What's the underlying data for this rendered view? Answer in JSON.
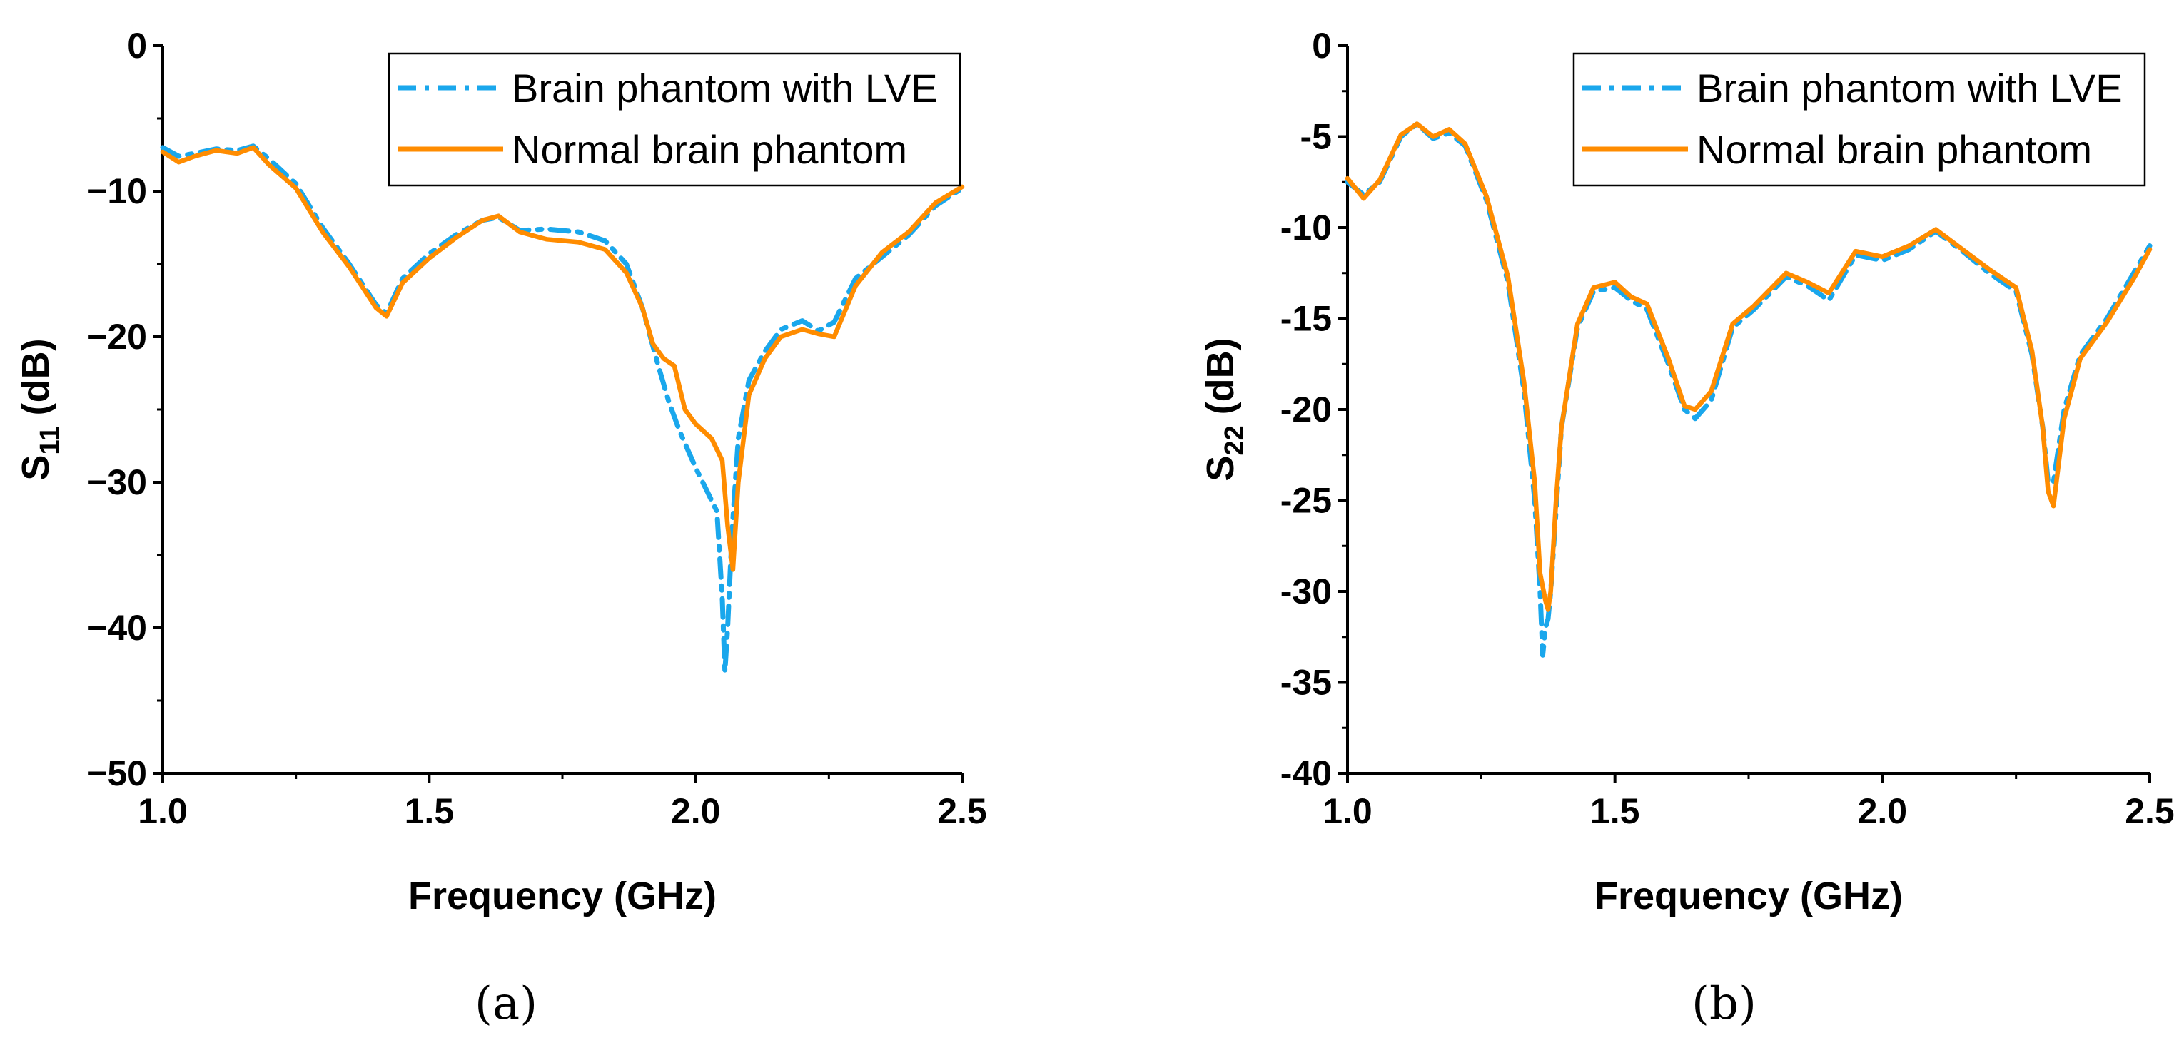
{
  "figure": {
    "panel_labels": [
      "(a)",
      "(b)"
    ]
  },
  "colors": {
    "series_lve": "#1aa7ec",
    "series_normal": "#ff8c00"
  },
  "chart_data": [
    {
      "type": "line",
      "id": "a",
      "title": "",
      "xlabel": "Frequency (GHz)",
      "ylabel_main": "S",
      "ylabel_sub": "11",
      "ylabel_unit": " (dB)",
      "xlim": [
        1.0,
        2.5
      ],
      "ylim": [
        -50,
        0
      ],
      "xticks": [
        1.0,
        1.5,
        2.0,
        2.5
      ],
      "xtick_labels": [
        "1.0",
        "1.5",
        "2.0",
        "2.5"
      ],
      "yticks": [
        0,
        -10,
        -20,
        -30,
        -40,
        -50
      ],
      "ytick_labels": [
        "0",
        "−10",
        "−20",
        "−30",
        "−40",
        "−50"
      ],
      "legend_position": "top-right",
      "series": [
        {
          "name": "Brain phantom with LVE",
          "style": "dashdot",
          "x": [
            1.0,
            1.03,
            1.06,
            1.1,
            1.14,
            1.17,
            1.2,
            1.25,
            1.3,
            1.35,
            1.4,
            1.42,
            1.45,
            1.5,
            1.55,
            1.6,
            1.63,
            1.67,
            1.72,
            1.78,
            1.83,
            1.87,
            1.9,
            1.93,
            1.95,
            1.97,
            2.0,
            2.02,
            2.04,
            2.05,
            2.055,
            2.06,
            2.065,
            2.07,
            2.08,
            2.1,
            2.13,
            2.16,
            2.2,
            2.23,
            2.26,
            2.3,
            2.35,
            2.4,
            2.45,
            2.5
          ],
          "y": [
            -7.0,
            -7.6,
            -7.4,
            -7.1,
            -7.2,
            -6.9,
            -7.8,
            -9.5,
            -12.5,
            -15.0,
            -17.8,
            -18.4,
            -16.0,
            -14.3,
            -13.0,
            -12.0,
            -11.8,
            -12.7,
            -12.6,
            -12.8,
            -13.4,
            -15.0,
            -18.0,
            -22.0,
            -24.5,
            -26.5,
            -29.0,
            -30.5,
            -32.0,
            -38.0,
            -43.0,
            -40.0,
            -36.0,
            -32.5,
            -27.0,
            -23.0,
            -21.0,
            -19.5,
            -18.9,
            -19.6,
            -19.0,
            -16.0,
            -14.5,
            -13.0,
            -11.0,
            -9.8
          ]
        },
        {
          "name": "Normal brain phantom",
          "style": "solid",
          "x": [
            1.0,
            1.03,
            1.06,
            1.1,
            1.14,
            1.17,
            1.2,
            1.25,
            1.3,
            1.35,
            1.4,
            1.42,
            1.45,
            1.5,
            1.55,
            1.6,
            1.63,
            1.67,
            1.72,
            1.78,
            1.83,
            1.87,
            1.9,
            1.92,
            1.94,
            1.96,
            1.98,
            2.0,
            2.03,
            2.05,
            2.06,
            2.07,
            2.08,
            2.1,
            2.13,
            2.16,
            2.2,
            2.23,
            2.26,
            2.3,
            2.35,
            2.4,
            2.45,
            2.5
          ],
          "y": [
            -7.3,
            -8.0,
            -7.6,
            -7.2,
            -7.4,
            -7.0,
            -8.2,
            -9.8,
            -12.8,
            -15.2,
            -18.0,
            -18.6,
            -16.3,
            -14.6,
            -13.2,
            -12.0,
            -11.7,
            -12.8,
            -13.3,
            -13.5,
            -14.0,
            -15.6,
            -18.0,
            -20.5,
            -21.5,
            -22.0,
            -25.0,
            -26.0,
            -27.0,
            -28.5,
            -33.0,
            -36.0,
            -30.0,
            -24.0,
            -21.5,
            -20.0,
            -19.5,
            -19.8,
            -20.0,
            -16.5,
            -14.2,
            -12.8,
            -10.8,
            -9.7
          ]
        }
      ]
    },
    {
      "type": "line",
      "id": "b",
      "title": "",
      "xlabel": "Frequency (GHz)",
      "ylabel_main": "S",
      "ylabel_sub": "22",
      "ylabel_unit": " (dB)",
      "xlim": [
        1.0,
        2.5
      ],
      "ylim": [
        -40,
        0
      ],
      "xticks": [
        1.0,
        1.5,
        2.0,
        2.5
      ],
      "xtick_labels": [
        "1.0",
        "1.5",
        "2.0",
        "2.5"
      ],
      "yticks": [
        0,
        -5,
        -10,
        -15,
        -20,
        -25,
        -30,
        -35,
        -40
      ],
      "ytick_labels": [
        "0",
        "-5",
        "-10",
        "-15",
        "-20",
        "-25",
        "-30",
        "-35",
        "-40"
      ],
      "legend_position": "top-right",
      "series": [
        {
          "name": "Brain phantom with LVE",
          "style": "dashdot",
          "x": [
            1.0,
            1.03,
            1.06,
            1.1,
            1.13,
            1.16,
            1.19,
            1.22,
            1.26,
            1.3,
            1.33,
            1.35,
            1.36,
            1.365,
            1.37,
            1.375,
            1.38,
            1.4,
            1.43,
            1.46,
            1.5,
            1.53,
            1.56,
            1.6,
            1.63,
            1.65,
            1.68,
            1.72,
            1.76,
            1.82,
            1.86,
            1.9,
            1.95,
            2.0,
            2.05,
            2.1,
            2.15,
            2.2,
            2.25,
            2.28,
            2.3,
            2.31,
            2.32,
            2.34,
            2.37,
            2.42,
            2.47,
            2.5
          ],
          "y": [
            -7.5,
            -8.2,
            -7.5,
            -5.0,
            -4.3,
            -5.1,
            -4.8,
            -5.5,
            -8.5,
            -13.0,
            -19.0,
            -25.0,
            -30.0,
            -33.5,
            -32.0,
            -31.5,
            -30.0,
            -21.0,
            -15.5,
            -13.5,
            -13.3,
            -14.0,
            -14.5,
            -17.5,
            -20.0,
            -20.5,
            -19.5,
            -15.5,
            -14.5,
            -12.7,
            -13.2,
            -14.0,
            -11.5,
            -11.8,
            -11.2,
            -10.2,
            -11.3,
            -12.5,
            -13.5,
            -17.0,
            -21.0,
            -24.0,
            -24.0,
            -20.0,
            -17.0,
            -15.0,
            -12.5,
            -11.0
          ]
        },
        {
          "name": "Normal brain phantom",
          "style": "solid",
          "x": [
            1.0,
            1.03,
            1.06,
            1.1,
            1.13,
            1.16,
            1.19,
            1.22,
            1.26,
            1.3,
            1.33,
            1.35,
            1.36,
            1.37,
            1.375,
            1.38,
            1.39,
            1.4,
            1.43,
            1.46,
            1.5,
            1.53,
            1.56,
            1.6,
            1.63,
            1.65,
            1.68,
            1.72,
            1.76,
            1.82,
            1.86,
            1.9,
            1.95,
            2.0,
            2.05,
            2.1,
            2.15,
            2.2,
            2.25,
            2.28,
            2.3,
            2.31,
            2.32,
            2.34,
            2.37,
            2.42,
            2.47,
            2.5
          ],
          "y": [
            -7.3,
            -8.4,
            -7.4,
            -4.9,
            -4.3,
            -5.0,
            -4.6,
            -5.4,
            -8.3,
            -12.7,
            -18.5,
            -24.0,
            -29.0,
            -30.5,
            -31.0,
            -30.0,
            -25.0,
            -21.0,
            -15.3,
            -13.3,
            -13.0,
            -13.8,
            -14.2,
            -17.2,
            -19.8,
            -20.0,
            -19.0,
            -15.3,
            -14.3,
            -12.5,
            -13.0,
            -13.6,
            -11.3,
            -11.6,
            -11.0,
            -10.1,
            -11.2,
            -12.3,
            -13.3,
            -16.8,
            -21.0,
            -24.5,
            -25.3,
            -20.5,
            -17.2,
            -15.2,
            -12.8,
            -11.2
          ]
        }
      ]
    }
  ]
}
